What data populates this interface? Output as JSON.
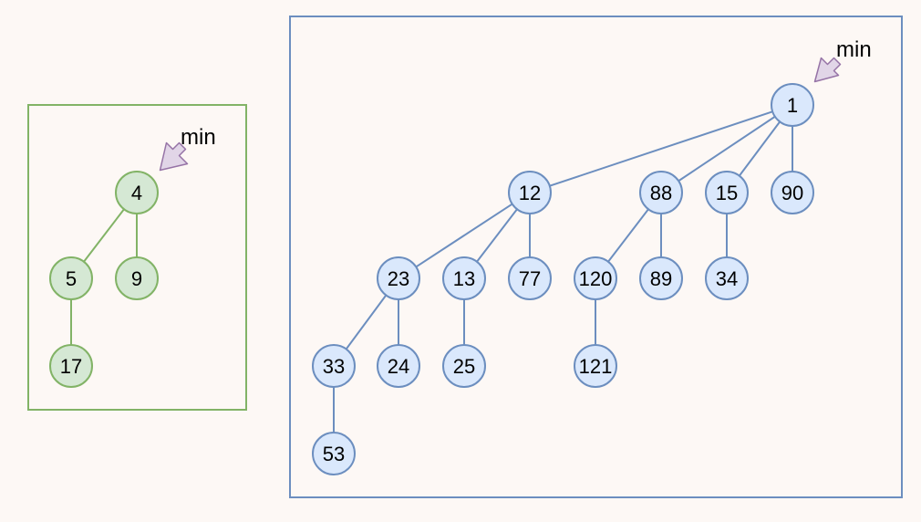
{
  "min_label": "min",
  "colors": {
    "green_fill": "#d5e8d4",
    "green_stroke": "#82b366",
    "blue_fill": "#dae8fc",
    "blue_stroke": "#6c8ebf",
    "arrow_fill": "#e1d5e7",
    "arrow_stroke": "#9673a6",
    "background": "#fdf8f5"
  },
  "heaps": [
    {
      "nodes": [
        {
          "id": "g4",
          "label": "4"
        },
        {
          "id": "g5",
          "label": "5"
        },
        {
          "id": "g9",
          "label": "9"
        },
        {
          "id": "g17",
          "label": "17"
        }
      ],
      "edges": [
        [
          "g4",
          "g5"
        ],
        [
          "g4",
          "g9"
        ],
        [
          "g5",
          "g17"
        ]
      ]
    },
    {
      "nodes": [
        {
          "id": "b1",
          "label": "1"
        },
        {
          "id": "b12",
          "label": "12"
        },
        {
          "id": "b88",
          "label": "88"
        },
        {
          "id": "b15",
          "label": "15"
        },
        {
          "id": "b90",
          "label": "90"
        },
        {
          "id": "b23",
          "label": "23"
        },
        {
          "id": "b13",
          "label": "13"
        },
        {
          "id": "b77",
          "label": "77"
        },
        {
          "id": "b120",
          "label": "120"
        },
        {
          "id": "b89",
          "label": "89"
        },
        {
          "id": "b34",
          "label": "34"
        },
        {
          "id": "b33",
          "label": "33"
        },
        {
          "id": "b24",
          "label": "24"
        },
        {
          "id": "b25",
          "label": "25"
        },
        {
          "id": "b121",
          "label": "121"
        },
        {
          "id": "b53",
          "label": "53"
        }
      ],
      "edges": [
        [
          "b1",
          "b12"
        ],
        [
          "b1",
          "b88"
        ],
        [
          "b1",
          "b15"
        ],
        [
          "b1",
          "b90"
        ],
        [
          "b12",
          "b23"
        ],
        [
          "b12",
          "b13"
        ],
        [
          "b12",
          "b77"
        ],
        [
          "b88",
          "b120"
        ],
        [
          "b88",
          "b89"
        ],
        [
          "b15",
          "b34"
        ],
        [
          "b23",
          "b33"
        ],
        [
          "b23",
          "b24"
        ],
        [
          "b13",
          "b25"
        ],
        [
          "b120",
          "b121"
        ],
        [
          "b33",
          "b53"
        ]
      ]
    }
  ]
}
